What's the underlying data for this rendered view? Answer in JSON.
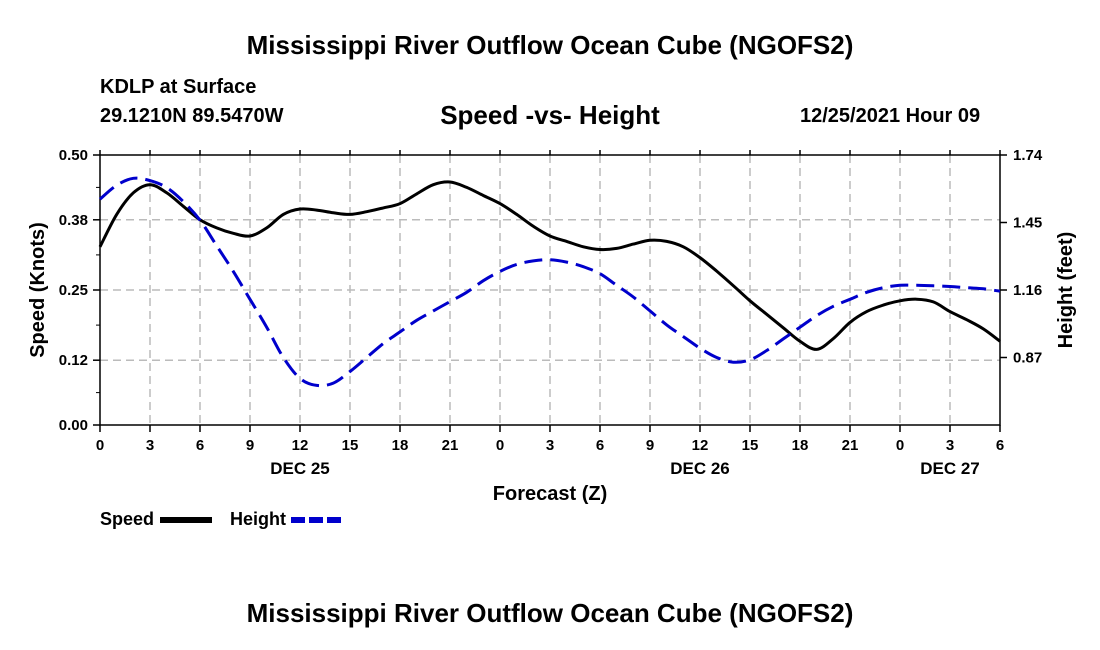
{
  "header": {
    "title": "Mississippi River Outflow Ocean Cube (NGOFS2)",
    "station": "KDLP at Surface",
    "coords": "29.1210N  89.5470W",
    "subtitle": "Speed -vs- Height",
    "datetime": "12/25/2021 Hour 09"
  },
  "footer": {
    "title": "Mississippi River Outflow Ocean Cube (NGOFS2)"
  },
  "colors": {
    "speed": "#000000",
    "height": "#0000cc",
    "grid": "#bbbbbb"
  },
  "chart_data": {
    "type": "line",
    "xlabel": "Forecast (Z)",
    "ylabel": "Speed (Knots)",
    "y2label": "Height (feet)",
    "xlim": [
      0,
      54
    ],
    "ylim": [
      0,
      0.5
    ],
    "y2lim": [
      0.58,
      1.74
    ],
    "x_tick_labels": [
      "0",
      "3",
      "6",
      "9",
      "12",
      "15",
      "18",
      "21",
      "0",
      "3",
      "6",
      "9",
      "12",
      "15",
      "18",
      "21",
      "0",
      "3",
      "6"
    ],
    "y_ticks": [
      0.0,
      0.12,
      0.25,
      0.38,
      0.5
    ],
    "y_tick_labels": [
      "0.00",
      "0.12",
      "0.25",
      "0.38",
      "0.50"
    ],
    "y2_ticks": [
      0.87,
      1.16,
      1.45,
      1.74
    ],
    "y2_tick_labels": [
      "0.87",
      "1.16",
      "1.45",
      "1.74"
    ],
    "day_labels": [
      {
        "x": 12,
        "label": "DEC 25"
      },
      {
        "x": 36,
        "label": "DEC 26"
      },
      {
        "x": 51,
        "label": "DEC 27"
      }
    ],
    "grid": true,
    "legend_position": "bottom-left",
    "series": [
      {
        "name": "Speed",
        "axis": "left",
        "style": "solid",
        "x": [
          0,
          1,
          2,
          3,
          4,
          5,
          6,
          7,
          8,
          9,
          10,
          11,
          12,
          13,
          14,
          15,
          16,
          17,
          18,
          19,
          20,
          21,
          22,
          23,
          24,
          25,
          26,
          27,
          28,
          29,
          30,
          31,
          32,
          33,
          34,
          35,
          36,
          37,
          38,
          39,
          40,
          41,
          42,
          43,
          44,
          45,
          46,
          47,
          48,
          49,
          50,
          51,
          52,
          53,
          54
        ],
        "values": [
          0.33,
          0.39,
          0.43,
          0.445,
          0.43,
          0.405,
          0.38,
          0.365,
          0.355,
          0.35,
          0.365,
          0.39,
          0.4,
          0.398,
          0.393,
          0.39,
          0.395,
          0.402,
          0.41,
          0.428,
          0.445,
          0.45,
          0.44,
          0.425,
          0.41,
          0.39,
          0.368,
          0.35,
          0.34,
          0.33,
          0.325,
          0.327,
          0.335,
          0.342,
          0.34,
          0.33,
          0.31,
          0.285,
          0.258,
          0.23,
          0.205,
          0.18,
          0.155,
          0.14,
          0.16,
          0.19,
          0.21,
          0.222,
          0.23,
          0.233,
          0.228,
          0.21,
          0.195,
          0.178,
          0.155
        ]
      },
      {
        "name": "Height",
        "axis": "right",
        "style": "dashed",
        "x": [
          0,
          1,
          2,
          3,
          4,
          5,
          6,
          7,
          8,
          9,
          10,
          11,
          12,
          13,
          14,
          15,
          16,
          17,
          18,
          19,
          20,
          21,
          22,
          23,
          24,
          25,
          26,
          27,
          28,
          29,
          30,
          31,
          32,
          33,
          34,
          35,
          36,
          37,
          38,
          39,
          40,
          41,
          42,
          43,
          44,
          45,
          46,
          47,
          48,
          49,
          50,
          51,
          52,
          53,
          54
        ],
        "values": [
          1.55,
          1.61,
          1.64,
          1.63,
          1.6,
          1.54,
          1.46,
          1.35,
          1.24,
          1.12,
          1.0,
          0.87,
          0.78,
          0.75,
          0.76,
          0.81,
          0.87,
          0.93,
          0.98,
          1.03,
          1.07,
          1.11,
          1.15,
          1.2,
          1.24,
          1.27,
          1.285,
          1.29,
          1.28,
          1.26,
          1.23,
          1.18,
          1.13,
          1.07,
          1.01,
          0.96,
          0.91,
          0.87,
          0.85,
          0.86,
          0.9,
          0.95,
          1.0,
          1.05,
          1.09,
          1.12,
          1.15,
          1.17,
          1.18,
          1.18,
          1.178,
          1.175,
          1.17,
          1.165,
          1.155
        ]
      }
    ]
  }
}
